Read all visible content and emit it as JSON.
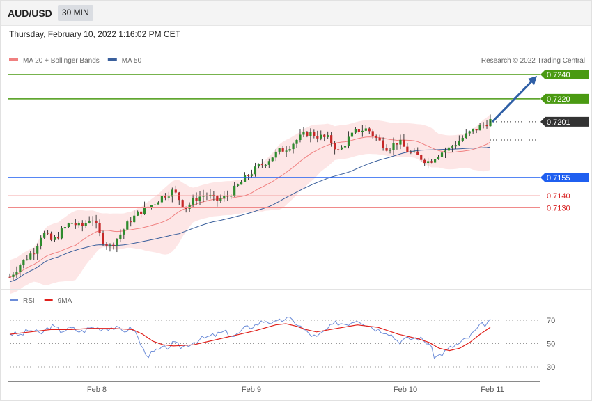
{
  "header": {
    "symbol": "AUD/USD",
    "timeframe": "30 MIN",
    "datetime": "Thursday, February 10, 2022 1:16:02 PM CET"
  },
  "copyright": "Research © 2022 Trading Central",
  "colors": {
    "ma20": "#f08080",
    "ma50": "#3a5f9c",
    "resistance": "#4a9a12",
    "support": "#1f5ff0",
    "minor_support": "#f08a8a",
    "last": "#333333",
    "rsi": "#6c8cd8",
    "rsi9ma": "#e0201b"
  },
  "chart_data": [
    {
      "type": "candlestick",
      "legend": [
        {
          "name": "MA 20 + Bollinger Bands",
          "color": "#f08080"
        },
        {
          "name": "MA 50",
          "color": "#3a5f9c"
        }
      ],
      "x_tick_labels": [
        "Feb 8",
        "Feb 9",
        "Feb 10",
        "Feb 11"
      ],
      "levels": [
        {
          "value": 0.724,
          "label": "0.7240",
          "kind": "resistance"
        },
        {
          "value": 0.722,
          "label": "0.7220",
          "kind": "resistance"
        },
        {
          "value": 0.7201,
          "label": "0.7201",
          "kind": "last"
        },
        {
          "value": 0.7155,
          "label": "0.7155",
          "kind": "support"
        },
        {
          "value": 0.714,
          "label": "0.7140",
          "kind": "minor_support"
        },
        {
          "value": 0.713,
          "label": "0.7130",
          "kind": "minor_support"
        }
      ],
      "price_path": [
        [
          0,
          0.7073
        ],
        [
          6,
          0.7085
        ],
        [
          12,
          0.7095
        ],
        [
          16,
          0.711
        ],
        [
          21,
          0.7102
        ],
        [
          26,
          0.7112
        ],
        [
          30,
          0.7118
        ],
        [
          35,
          0.7114
        ],
        [
          40,
          0.7123
        ],
        [
          45,
          0.7104
        ],
        [
          49,
          0.7098
        ],
        [
          54,
          0.7108
        ],
        [
          59,
          0.712
        ],
        [
          64,
          0.7127
        ],
        [
          70,
          0.7133
        ],
        [
          75,
          0.714
        ],
        [
          80,
          0.7144
        ],
        [
          86,
          0.713
        ],
        [
          91,
          0.7138
        ],
        [
          96,
          0.7141
        ],
        [
          101,
          0.7136
        ],
        [
          106,
          0.7139
        ],
        [
          111,
          0.7147
        ],
        [
          116,
          0.7156
        ],
        [
          121,
          0.7163
        ],
        [
          126,
          0.7169
        ],
        [
          131,
          0.7176
        ],
        [
          136,
          0.718
        ],
        [
          141,
          0.7187
        ],
        [
          146,
          0.7192
        ],
        [
          151,
          0.7189
        ],
        [
          156,
          0.7187
        ],
        [
          161,
          0.7176
        ],
        [
          165,
          0.7186
        ],
        [
          170,
          0.7194
        ],
        [
          175,
          0.7195
        ],
        [
          180,
          0.7186
        ],
        [
          185,
          0.7179
        ],
        [
          190,
          0.7185
        ],
        [
          195,
          0.7176
        ],
        [
          200,
          0.7172
        ],
        [
          205,
          0.7168
        ],
        [
          210,
          0.7175
        ],
        [
          215,
          0.7179
        ],
        [
          220,
          0.7186
        ],
        [
          225,
          0.7192
        ],
        [
          230,
          0.7197
        ],
        [
          235,
          0.7202
        ]
      ],
      "arrow_target": 0.724,
      "y_range": [
        0.705,
        0.7252
      ]
    },
    {
      "type": "line",
      "series": [
        {
          "name": "RSI",
          "color": "#6c8cd8"
        },
        {
          "name": "9MA",
          "color": "#e0201b"
        }
      ],
      "y_ticks": [
        70,
        50,
        30
      ],
      "rsi": [
        [
          0,
          59
        ],
        [
          5,
          57
        ],
        [
          10,
          62
        ],
        [
          15,
          58
        ],
        [
          20,
          65
        ],
        [
          25,
          61
        ],
        [
          30,
          63
        ],
        [
          35,
          60
        ],
        [
          40,
          64
        ],
        [
          45,
          63
        ],
        [
          50,
          64
        ],
        [
          55,
          61
        ],
        [
          60,
          63
        ],
        [
          62,
          58
        ],
        [
          65,
          45
        ],
        [
          68,
          40
        ],
        [
          72,
          44
        ],
        [
          76,
          46
        ],
        [
          80,
          50
        ],
        [
          84,
          47
        ],
        [
          88,
          50
        ],
        [
          92,
          53
        ],
        [
          96,
          55
        ],
        [
          100,
          57
        ],
        [
          105,
          60
        ],
        [
          110,
          56
        ],
        [
          115,
          63
        ],
        [
          120,
          66
        ],
        [
          125,
          70
        ],
        [
          130,
          67
        ],
        [
          135,
          72
        ],
        [
          140,
          68
        ],
        [
          145,
          60
        ],
        [
          150,
          55
        ],
        [
          155,
          62
        ],
        [
          160,
          68
        ],
        [
          165,
          67
        ],
        [
          170,
          71
        ],
        [
          175,
          66
        ],
        [
          180,
          62
        ],
        [
          185,
          60
        ],
        [
          190,
          52
        ],
        [
          195,
          54
        ],
        [
          200,
          55
        ],
        [
          205,
          50
        ],
        [
          208,
          38
        ],
        [
          212,
          42
        ],
        [
          216,
          47
        ],
        [
          220,
          50
        ],
        [
          225,
          56
        ],
        [
          230,
          65
        ],
        [
          235,
          69
        ]
      ],
      "ma9": [
        [
          0,
          58
        ],
        [
          10,
          60
        ],
        [
          20,
          62
        ],
        [
          30,
          62
        ],
        [
          40,
          63
        ],
        [
          50,
          63
        ],
        [
          60,
          62
        ],
        [
          65,
          58
        ],
        [
          70,
          52
        ],
        [
          75,
          49
        ],
        [
          80,
          48
        ],
        [
          90,
          49
        ],
        [
          100,
          53
        ],
        [
          110,
          57
        ],
        [
          120,
          61
        ],
        [
          130,
          66
        ],
        [
          135,
          67
        ],
        [
          140,
          65
        ],
        [
          145,
          62
        ],
        [
          150,
          60
        ],
        [
          160,
          63
        ],
        [
          170,
          66
        ],
        [
          180,
          64
        ],
        [
          190,
          58
        ],
        [
          200,
          54
        ],
        [
          205,
          51
        ],
        [
          210,
          46
        ],
        [
          215,
          44
        ],
        [
          220,
          46
        ],
        [
          225,
          51
        ],
        [
          230,
          58
        ],
        [
          235,
          64
        ]
      ]
    }
  ]
}
